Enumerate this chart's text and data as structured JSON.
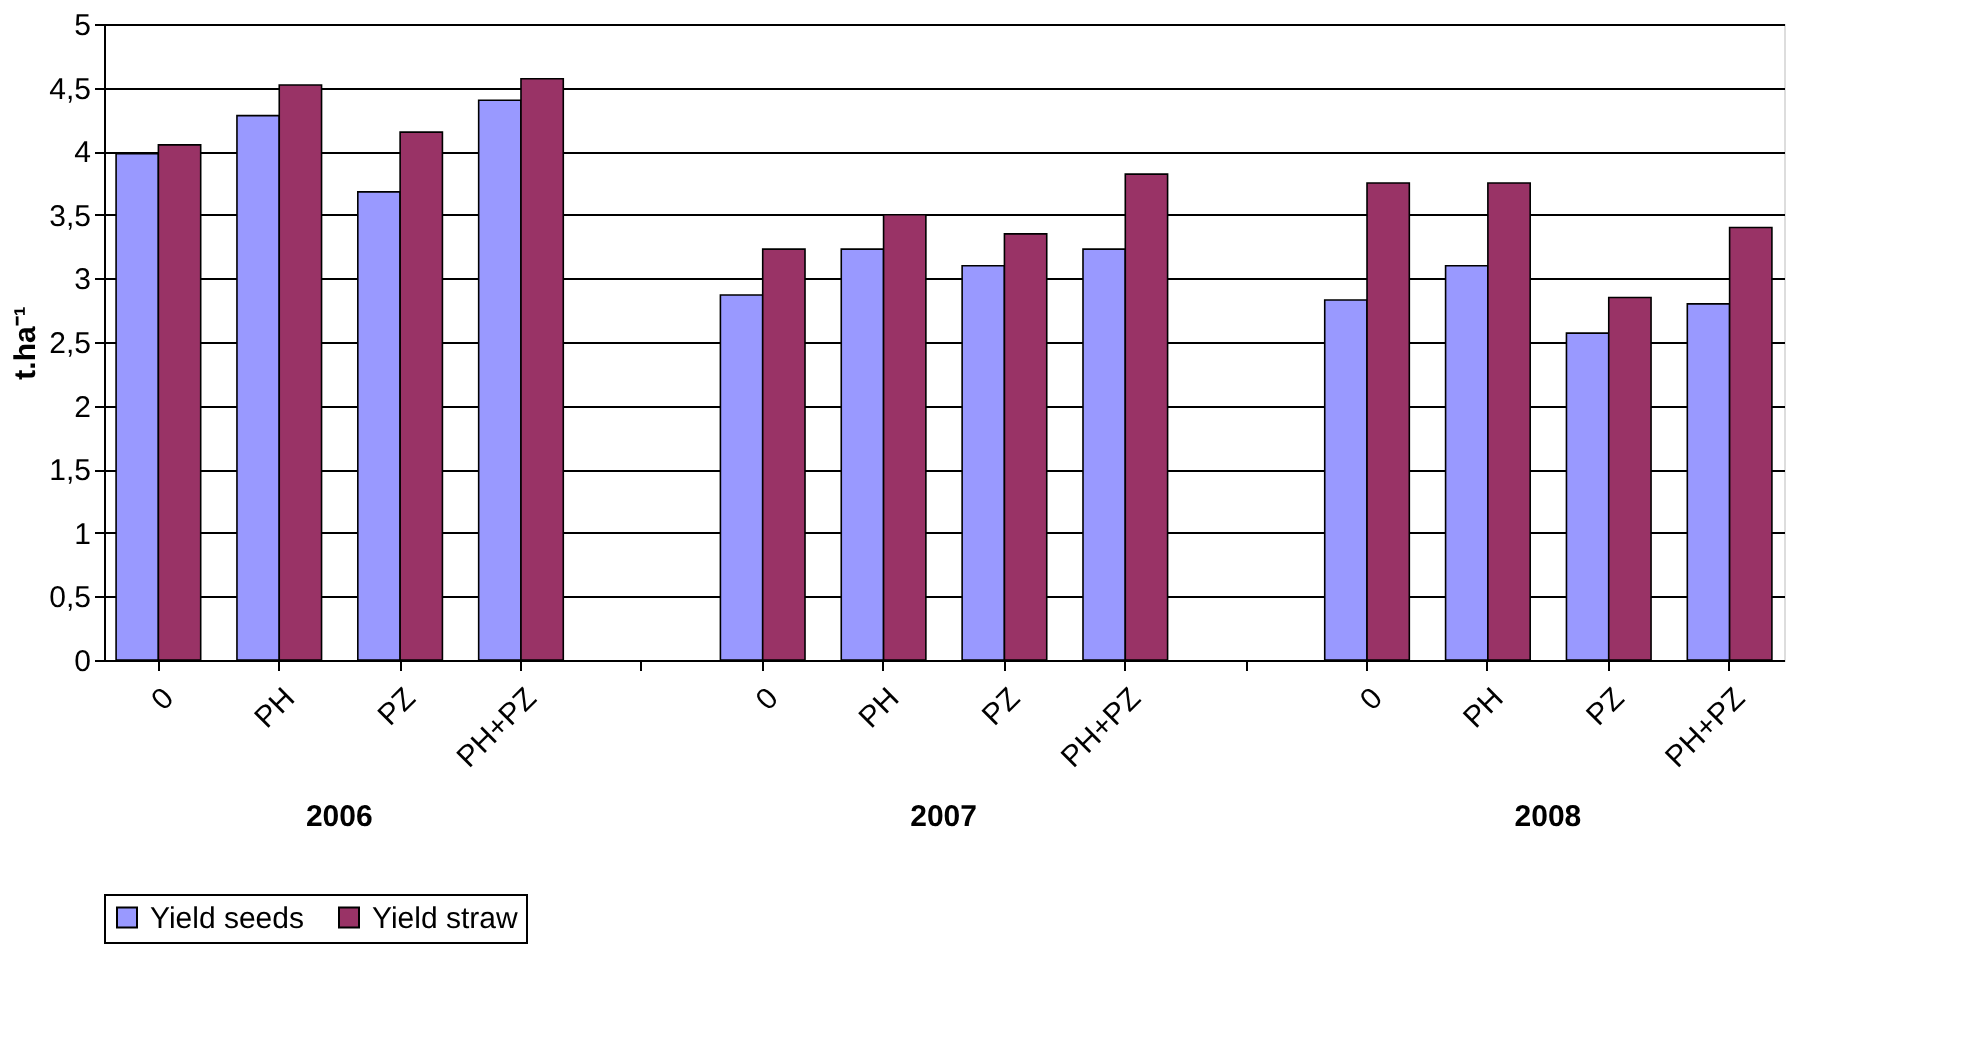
{
  "chart_data": {
    "type": "bar",
    "ylabel": "t.ha⁻¹",
    "categories": [
      "0",
      "PH",
      "PZ",
      "PH+PZ",
      null,
      "0",
      "PH",
      "PZ",
      "PH+PZ",
      null,
      "0",
      "PH",
      "PZ",
      "PH+PZ"
    ],
    "series": [
      {
        "name": "Yield  seeds",
        "color": "#9999ff",
        "values": [
          3.98,
          4.28,
          3.68,
          4.4,
          null,
          2.87,
          3.23,
          3.1,
          3.23,
          null,
          2.83,
          3.1,
          2.57,
          2.8
        ]
      },
      {
        "name": "Yield straw",
        "color": "#993366",
        "values": [
          4.05,
          4.52,
          4.15,
          4.57,
          null,
          3.23,
          3.5,
          3.35,
          3.82,
          null,
          3.75,
          3.75,
          2.85,
          3.4
        ]
      }
    ],
    "annotations": [
      "2006",
      "2007",
      "2008"
    ],
    "ylim": [
      0,
      5
    ],
    "yticks": [
      0,
      {
        "value": 0.5,
        "label": "0,5"
      },
      1,
      {
        "value": 1.5,
        "label": "1,5"
      },
      2,
      {
        "value": 2.5,
        "label": "2,5"
      },
      3,
      {
        "value": 3.5,
        "label": "3,5"
      },
      4,
      {
        "value": 4.5,
        "label": "4,5"
      },
      5
    ],
    "grid": "y",
    "legend": "bottom"
  }
}
